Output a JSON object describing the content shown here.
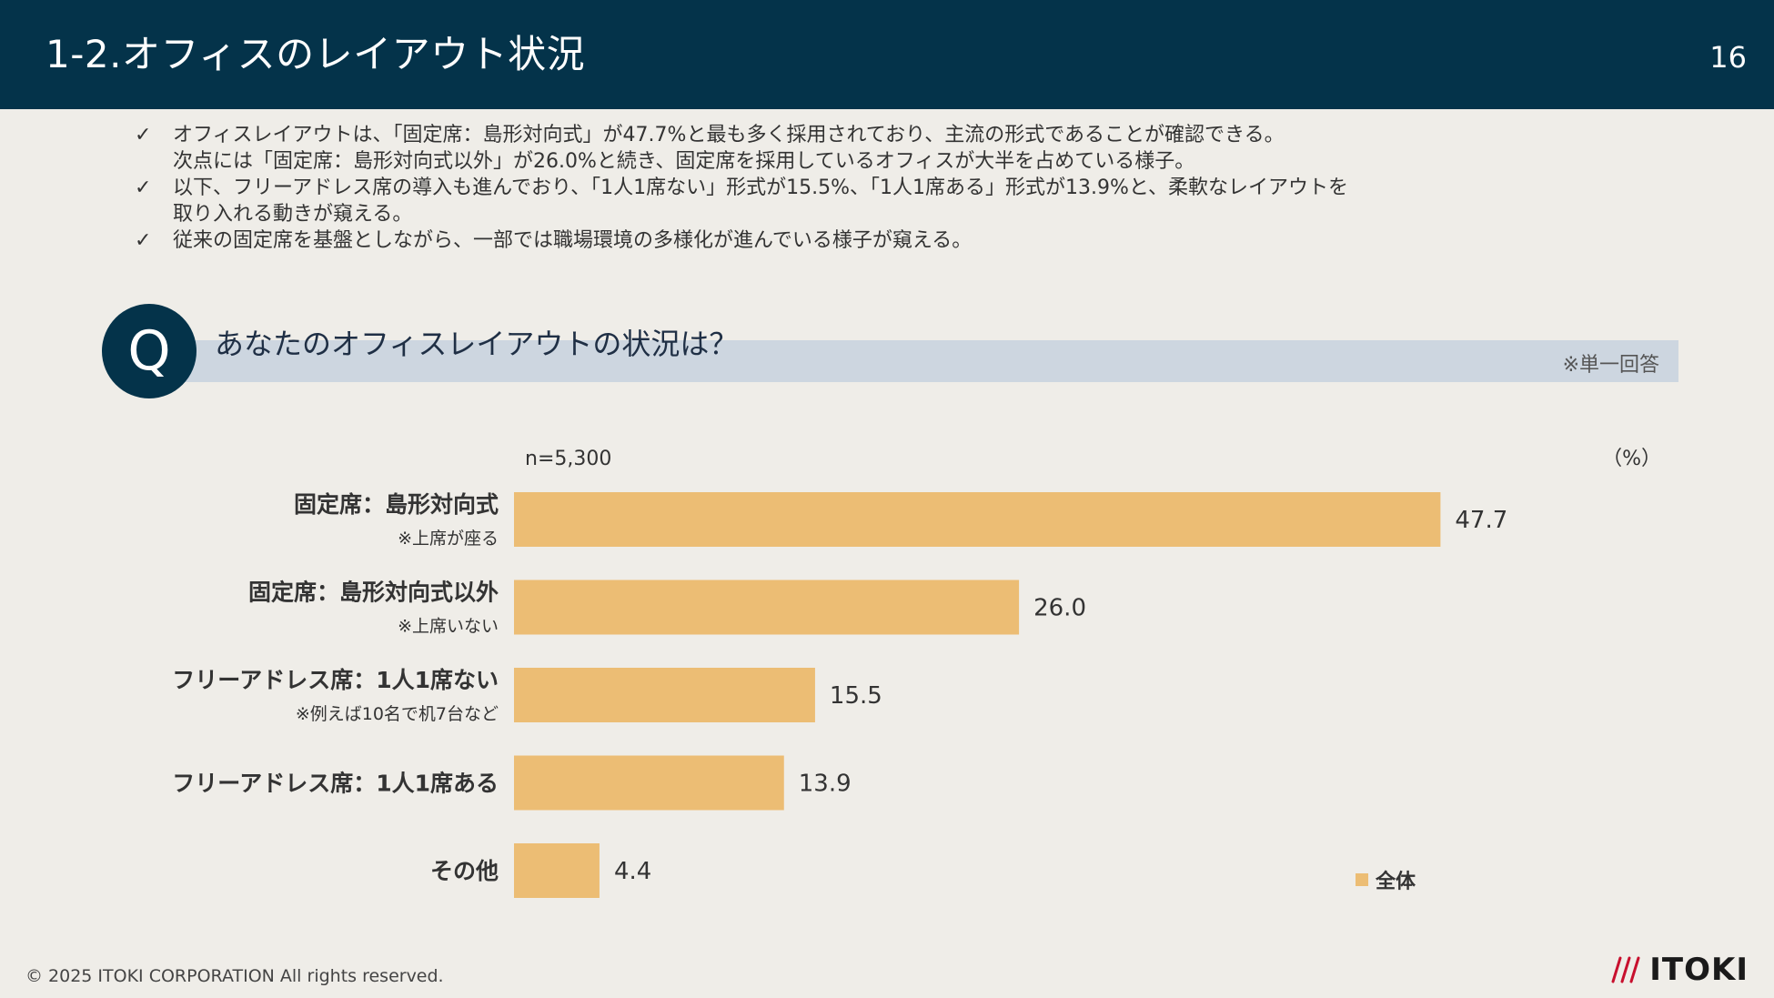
{
  "header": {
    "title": "1-2.オフィスのレイアウト状況",
    "page_number": "16",
    "background": "#04334a"
  },
  "bullets": [
    {
      "check": "✓",
      "lines": [
        "オフィスレイアウトは、「固定席：島形対向式」が47.7%と最も多く採用されており、主流の形式であることが確認できる。",
        "次点には「固定席：島形対向式以外」が26.0%と続き、固定席を採用しているオフィスが大半を占めている様子。"
      ]
    },
    {
      "check": "✓",
      "lines": [
        "以下、フリーアドレス席の導入も進んでおり、「1人1席ない」形式が15.5%、「1人1席ある」形式が13.9%と、柔軟なレイアウトを",
        "取り入れる動きが窺える。"
      ]
    },
    {
      "check": "✓",
      "lines": [
        "従来の固定席を基盤としながら、一部では職場環境の多様化が進んでいる様子が窺える。"
      ]
    }
  ],
  "question": {
    "badge": "Q",
    "text": "あなたのオフィスレイアウトの状況は？",
    "note": "※単一回答"
  },
  "chart_data": {
    "type": "bar",
    "orientation": "horizontal",
    "sample_size": "n=5,300",
    "unit_label": "（%）",
    "categories": [
      "固定席：島形対向式",
      "固定席：島形対向式以外",
      "フリーアドレス席：1人1席ない",
      "フリーアドレス席：1人1席ある",
      "その他"
    ],
    "category_notes": [
      "※上席が座る",
      "※上席いない",
      "※例えば10名で机7台など",
      "",
      ""
    ],
    "series": [
      {
        "name": "全体",
        "values": [
          47.7,
          26.0,
          15.5,
          13.9,
          4.4
        ],
        "value_labels": [
          "47.7",
          "26.0",
          "15.5",
          "13.9",
          "4.4"
        ],
        "color": "#ecbd74"
      }
    ],
    "xlim": [
      0,
      60
    ],
    "grid": false,
    "legend_position": "bottom-right"
  },
  "footer": {
    "copyright": "© 2025 ITOKI CORPORATION All rights reserved.",
    "logo_text": "ITOKI",
    "logo_color": "#c8102e"
  }
}
